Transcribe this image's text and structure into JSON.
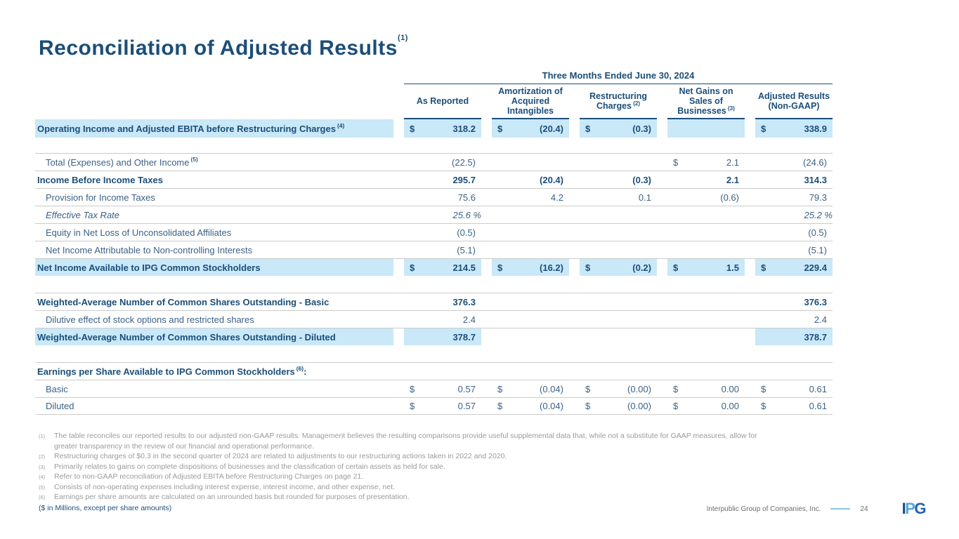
{
  "title": "Reconciliation of Adjusted Results",
  "title_sup": "(1)",
  "colors": {
    "navy": "#1B4E79",
    "text": "#3D6186",
    "highlight": "#C9E8F8",
    "row_line": "#CBCBCB",
    "footnote_gray": "#9B9B9B",
    "footer_gray": "#6E6E6E",
    "dash_blue": "#8FC3E4",
    "logo_p_blue": "#55A8DF",
    "logo_g_blue": "#2363AE"
  },
  "table": {
    "period_header": "Three Months Ended June 30, 2024",
    "columns": [
      {
        "key": "as-reported",
        "label": "As Reported",
        "sup": ""
      },
      {
        "key": "amortization",
        "label": "Amortization of Acquired Intangibles",
        "sup": ""
      },
      {
        "key": "restructuring",
        "label": "Restructuring Charges",
        "sup": "(2)"
      },
      {
        "key": "net-gains",
        "label": "Net Gains on Sales of Businesses",
        "sup": "(3)"
      },
      {
        "key": "adjusted",
        "label": "Adjusted Results (Non-GAAP)",
        "sup": ""
      }
    ],
    "rows": [
      {
        "label": "Operating Income and Adjusted EBITA before Restructuring Charges",
        "sup": "(4)",
        "bold": true,
        "hl": true,
        "noline": true,
        "cells": [
          {
            "d": "$",
            "v": "318.2",
            "hl": true
          },
          {
            "d": "$",
            "v": "(20.4)",
            "hl": true
          },
          {
            "d": "$",
            "v": "(0.3)",
            "hl": true
          },
          {
            "hl": true
          },
          {
            "d": "$",
            "v": "338.9",
            "hl": true
          }
        ]
      },
      {
        "spacer": 22
      },
      {
        "label": "Total (Expenses) and Other Income",
        "sup": "(5)",
        "indent": true,
        "cells": [
          {
            "v": "(22.5)"
          },
          {},
          {},
          {
            "d": "$",
            "v": "2.1"
          },
          {
            "v": "(24.6)"
          }
        ]
      },
      {
        "label": "Income Before Income Taxes",
        "bold": true,
        "cells": [
          {
            "v": "295.7"
          },
          {
            "v": "(20.4)"
          },
          {
            "v": "(0.3)"
          },
          {
            "v": "2.1"
          },
          {
            "v": "314.3"
          }
        ]
      },
      {
        "label": "Provision for Income Taxes",
        "indent": true,
        "cells": [
          {
            "v": "75.6"
          },
          {
            "v": "4.2"
          },
          {
            "v": "0.1"
          },
          {
            "v": "(0.6)"
          },
          {
            "v": "79.3"
          }
        ]
      },
      {
        "label": "Effective Tax Rate",
        "indent": true,
        "italic": true,
        "cells": [
          {
            "v": "25.6",
            "pct": true
          },
          {},
          {},
          {},
          {
            "v": "25.2",
            "pct": true
          }
        ]
      },
      {
        "label": "Equity in Net Loss of Unconsolidated Affiliates",
        "indent": true,
        "cells": [
          {
            "v": "(0.5)"
          },
          {},
          {},
          {},
          {
            "v": "(0.5)"
          }
        ]
      },
      {
        "label": "Net Income Attributable to Non-controlling Interests",
        "indent": true,
        "cells": [
          {
            "v": "(5.1)"
          },
          {},
          {},
          {},
          {
            "v": "(5.1)"
          }
        ]
      },
      {
        "label": "Net Income Available to IPG Common Stockholders",
        "bold": true,
        "hl": true,
        "cells": [
          {
            "d": "$",
            "v": "214.5",
            "hl": true
          },
          {
            "d": "$",
            "v": "(16.2)",
            "hl": true
          },
          {
            "d": "$",
            "v": "(0.2)",
            "hl": true
          },
          {
            "d": "$",
            "v": "1.5",
            "hl": true
          },
          {
            "d": "$",
            "v": "229.4",
            "hl": true
          }
        ]
      },
      {
        "spacer": 24
      },
      {
        "label": "Weighted-Average Number of Common Shares Outstanding - Basic",
        "bold": true,
        "cells": [
          {
            "v": "376.3"
          },
          {},
          {},
          {},
          {
            "v": "376.3"
          }
        ]
      },
      {
        "label": "Dilutive effect of stock options and restricted shares",
        "indent": true,
        "cells": [
          {
            "v": "2.4"
          },
          {},
          {},
          {},
          {
            "v": "2.4"
          }
        ]
      },
      {
        "label": "Weighted-Average Number of Common Shares Outstanding - Diluted",
        "bold": true,
        "hl": true,
        "cells": [
          {
            "v": "378.7",
            "hl": true
          },
          {},
          {},
          {},
          {
            "v": "378.7",
            "hl": true
          }
        ]
      },
      {
        "spacer": 24
      },
      {
        "label": "Earnings per Share Available to IPG Common Stockholders",
        "sup": "(6)",
        "suffix": ":",
        "bold": true,
        "cells": [
          {},
          {},
          {},
          {},
          {}
        ]
      },
      {
        "label": "Basic",
        "indent": true,
        "cells": [
          {
            "d": "$",
            "v": "0.57"
          },
          {
            "d": "$",
            "v": "(0.04)"
          },
          {
            "d": "$",
            "v": "(0.00)"
          },
          {
            "d": "$",
            "v": "0.00"
          },
          {
            "d": "$",
            "v": "0.61"
          }
        ]
      },
      {
        "label": "Diluted",
        "indent": true,
        "lastline": true,
        "cells": [
          {
            "d": "$",
            "v": "0.57"
          },
          {
            "d": "$",
            "v": "(0.04)"
          },
          {
            "d": "$",
            "v": "(0.00)"
          },
          {
            "d": "$",
            "v": "0.00"
          },
          {
            "d": "$",
            "v": "0.61"
          }
        ]
      }
    ]
  },
  "footnotes": [
    {
      "marker": "(1)",
      "text": "The table reconciles our reported results to our adjusted non-GAAP results. Management believes the resulting comparisons provide useful supplemental data that, while not a substitute for GAAP measures, allow for greater transparency in the review of our financial and operational performance."
    },
    {
      "marker": "(2)",
      "text": "Restructuring charges of $0.3 in the second quarter of 2024 are related to adjustments to our restructuring actions taken in 2022 and 2020."
    },
    {
      "marker": "(3)",
      "text": "Primarily relates to gains on complete dispositions of businesses and the classification of certain assets as held for sale."
    },
    {
      "marker": "(4)",
      "text": "Refer to non-GAAP reconciliation of Adjusted EBITA before Restructuring Charges on page 21."
    },
    {
      "marker": "(5)",
      "text": "Consists of non-operating expenses including interest expense, interest income, and other expense, net."
    },
    {
      "marker": "(6)",
      "text": "Earnings per share amounts are calculated on an unrounded basis but rounded for purposes of presentation."
    }
  ],
  "footer": {
    "units_note": "($ in Millions, except per share amounts)",
    "company": "Interpublic Group of Companies, Inc.",
    "page": "24",
    "logo_letters": [
      {
        "ch": "I",
        "color": "#1D4E7C"
      },
      {
        "ch": "P",
        "color": "#55A8DF"
      },
      {
        "ch": "G",
        "color": "#2363AE"
      }
    ]
  }
}
